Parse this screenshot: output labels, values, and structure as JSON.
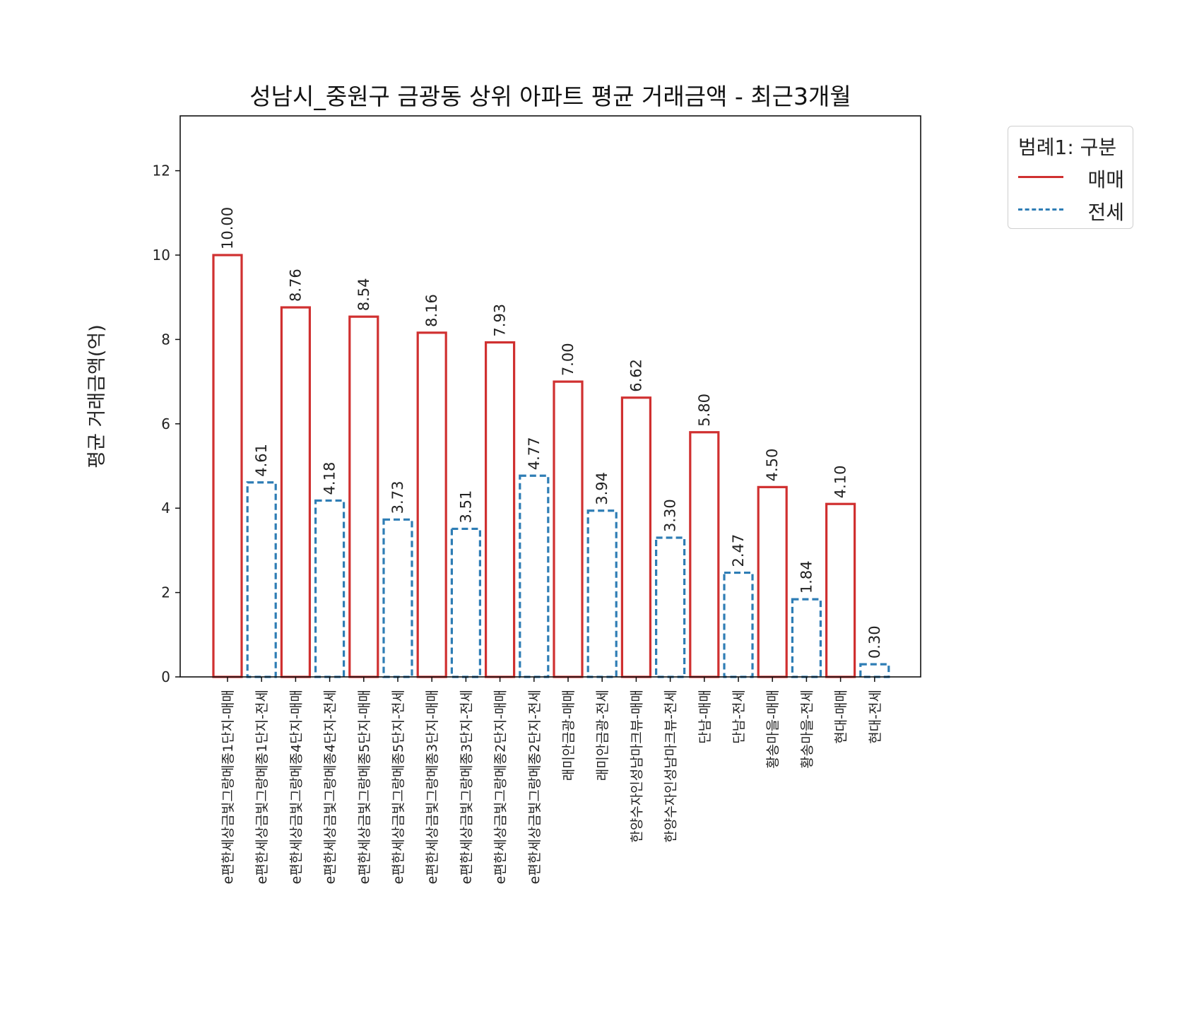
{
  "chart_data": {
    "type": "bar",
    "title": "성남시_중원구 금광동 상위 아파트 평균 거래금액 - 최근3개월",
    "xlabel": "",
    "ylabel": "평균 거래금액(억)",
    "ylim": [
      0,
      13.3
    ],
    "yticks": [
      0,
      2,
      4,
      6,
      8,
      10,
      12
    ],
    "grid": false,
    "legend": {
      "title": "범례1: 구분",
      "placement": "outside-right-top",
      "entries": [
        {
          "name": "매매",
          "color": "#d03030",
          "style": "solid"
        },
        {
          "name": "전세",
          "color": "#2e7db5",
          "style": "dashed"
        }
      ]
    },
    "categories": [
      "e편한세상금빛그랑메종1단지-매매",
      "e편한세상금빛그랑메종1단지-전세",
      "e편한세상금빛그랑메종4단지-매매",
      "e편한세상금빛그랑메종4단지-전세",
      "e편한세상금빛그랑메종5단지-매매",
      "e편한세상금빛그랑메종5단지-전세",
      "e편한세상금빛그랑메종3단지-매매",
      "e편한세상금빛그랑메종3단지-전세",
      "e편한세상금빛그랑메종2단지-매매",
      "e편한세상금빛그랑메종2단지-전세",
      "래미안금광-매매",
      "래미안금광-전세",
      "한양수자인성남마크뷰-매매",
      "한양수자인성남마크뷰-전세",
      "단남-매매",
      "단남-전세",
      "황송마을-매매",
      "황송마을-전세",
      "현대-매매",
      "현대-전세"
    ],
    "values": [
      10.0,
      4.61,
      8.76,
      4.18,
      8.54,
      3.73,
      8.16,
      3.51,
      7.93,
      4.77,
      7.0,
      3.94,
      6.62,
      3.3,
      5.8,
      2.47,
      4.5,
      1.84,
      4.1,
      0.3
    ],
    "value_labels": [
      "10.00",
      "4.61",
      "8.76",
      "4.18",
      "8.54",
      "3.73",
      "8.16",
      "3.51",
      "7.93",
      "4.77",
      "7.00",
      "3.94",
      "6.62",
      "3.30",
      "5.80",
      "2.47",
      "4.50",
      "1.84",
      "4.10",
      "0.30"
    ],
    "bar_group": [
      "매매",
      "전세",
      "매매",
      "전세",
      "매매",
      "전세",
      "매매",
      "전세",
      "매매",
      "전세",
      "매매",
      "전세",
      "매매",
      "전세",
      "매매",
      "전세",
      "매매",
      "전세",
      "매매",
      "전세"
    ]
  }
}
